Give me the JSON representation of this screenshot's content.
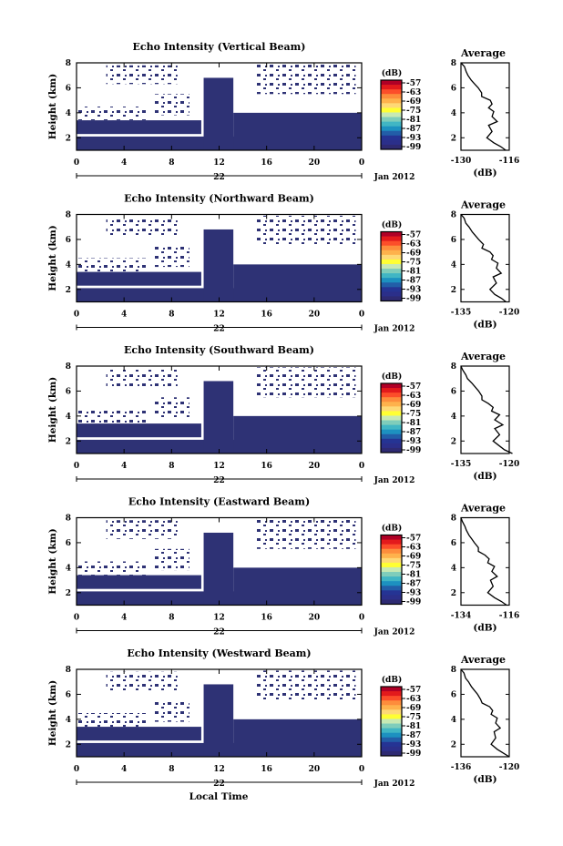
{
  "figure": {
    "xlabel": "Local Time",
    "date_label": "Jan 2012",
    "day_label": "22",
    "colorbar_unit": "(dB)",
    "colorbar_ticks": [
      "-57",
      "-63",
      "-69",
      "-75",
      "-81",
      "-87",
      "-93",
      "-99"
    ],
    "colorbar_colors": [
      "#b00026",
      "#e31a1c",
      "#fc4e2a",
      "#fd8d3c",
      "#feb24c",
      "#fed976",
      "#ffff33",
      "#c7e9b4",
      "#7fcdbb",
      "#41b6c4",
      "#1d91c0",
      "#225ea8",
      "#253494",
      "#2b2f8a",
      "#2e2a72"
    ],
    "sample_color": "#2e3275"
  },
  "chart_data": [
    {
      "type": "heatmap",
      "title": "Echo Intensity (Vertical Beam)",
      "ylabel": "Height (km)",
      "xlim": [
        0,
        24
      ],
      "ylim": [
        1,
        8
      ],
      "xticks": [
        "0",
        "4",
        "8",
        "12",
        "16",
        "20",
        "0"
      ],
      "yticks": [
        "2",
        "4",
        "6",
        "8"
      ],
      "profile": {
        "title": "Average",
        "xlabel": "(dB)",
        "xlim": [
          -130,
          -116
        ],
        "xticks": [
          "-130",
          "-116"
        ],
        "yticks": [
          "2",
          "4",
          "6",
          "8"
        ],
        "x": [
          -117.0,
          -118.5,
          -120.5,
          -122.5,
          -121.0,
          -122.0,
          -119.5,
          -121.0,
          -120.5,
          -122.0,
          -121.0,
          -121.5,
          -124.0,
          -124.0,
          -125.0,
          -126.0,
          -127.0,
          -128.0,
          -128.5,
          -129.0,
          -130.0
        ],
        "y": [
          1.0,
          1.3,
          1.6,
          2.0,
          2.5,
          3.0,
          3.3,
          3.7,
          4.1,
          4.4,
          4.7,
          5.0,
          5.3,
          5.6,
          6.0,
          6.3,
          6.6,
          7.0,
          7.3,
          7.7,
          8.0
        ]
      }
    },
    {
      "type": "heatmap",
      "title": "Echo Intensity (Northward Beam)",
      "ylabel": "Height (km)",
      "xlim": [
        0,
        24
      ],
      "ylim": [
        1,
        8
      ],
      "xticks": [
        "0",
        "4",
        "8",
        "12",
        "16",
        "20",
        "0"
      ],
      "yticks": [
        "2",
        "4",
        "6",
        "8"
      ],
      "profile": {
        "title": "Average",
        "xlabel": "(dB)",
        "xlim": [
          -135,
          -120
        ],
        "xticks": [
          "-135",
          "-120"
        ],
        "yticks": [
          "2",
          "4",
          "6",
          "8"
        ],
        "x": [
          -121.0,
          -122.5,
          -124.5,
          -126.0,
          -124.0,
          -125.0,
          -122.5,
          -124.0,
          -123.5,
          -125.5,
          -125.0,
          -126.0,
          -128.5,
          -128.0,
          -129.5,
          -130.5,
          -131.5,
          -132.5,
          -133.5,
          -134.0,
          -135.0
        ],
        "y": [
          1.0,
          1.3,
          1.6,
          2.0,
          2.5,
          3.0,
          3.3,
          3.7,
          4.1,
          4.4,
          4.7,
          5.0,
          5.3,
          5.6,
          6.0,
          6.3,
          6.6,
          7.0,
          7.3,
          7.7,
          8.0
        ]
      }
    },
    {
      "type": "heatmap",
      "title": "Echo Intensity (Southward Beam)",
      "ylabel": "Height (km)",
      "xlim": [
        0,
        24
      ],
      "ylim": [
        1,
        8
      ],
      "xticks": [
        "0",
        "4",
        "8",
        "12",
        "16",
        "20",
        "0"
      ],
      "yticks": [
        "2",
        "4",
        "6",
        "8"
      ],
      "profile": {
        "title": "Average",
        "xlabel": "(dB)",
        "xlim": [
          -135,
          -120
        ],
        "xticks": [
          "-135",
          "-120"
        ],
        "yticks": [
          "2",
          "4",
          "6",
          "8"
        ],
        "x": [
          -119.0,
          -121.5,
          -123.0,
          -125.0,
          -123.0,
          -124.5,
          -122.0,
          -124.5,
          -123.0,
          -125.5,
          -125.0,
          -126.5,
          -128.5,
          -128.5,
          -129.5,
          -130.5,
          -131.5,
          -133.0,
          -133.5,
          -134.5,
          -135.0
        ],
        "y": [
          1.0,
          1.3,
          1.6,
          2.0,
          2.5,
          3.0,
          3.3,
          3.7,
          4.1,
          4.4,
          4.7,
          5.0,
          5.3,
          5.6,
          6.0,
          6.3,
          6.6,
          7.0,
          7.3,
          7.7,
          8.0
        ]
      }
    },
    {
      "type": "heatmap",
      "title": "Echo Intensity (Eastward Beam)",
      "ylabel": "Height (km)",
      "xlim": [
        0,
        24
      ],
      "ylim": [
        1,
        8
      ],
      "xticks": [
        "0",
        "4",
        "8",
        "12",
        "16",
        "20",
        "0"
      ],
      "yticks": [
        "2",
        "4",
        "6",
        "8"
      ],
      "profile": {
        "title": "Average",
        "xlabel": "(dB)",
        "xlim": [
          -134,
          -116
        ],
        "xticks": [
          "-134",
          "-116"
        ],
        "yticks": [
          "2",
          "4",
          "6",
          "8"
        ],
        "x": [
          -117.0,
          -119.0,
          -121.5,
          -124.0,
          -122.0,
          -123.0,
          -120.5,
          -122.5,
          -121.5,
          -124.0,
          -123.5,
          -125.0,
          -127.5,
          -127.5,
          -129.0,
          -130.0,
          -131.0,
          -132.0,
          -132.5,
          -133.5,
          -134.0
        ],
        "y": [
          1.0,
          1.3,
          1.6,
          2.0,
          2.5,
          3.0,
          3.3,
          3.7,
          4.1,
          4.4,
          4.7,
          5.0,
          5.3,
          5.6,
          6.0,
          6.3,
          6.6,
          7.0,
          7.3,
          7.7,
          8.0
        ]
      }
    },
    {
      "type": "heatmap",
      "title": "Echo Intensity (Westward Beam)",
      "ylabel": "Height (km)",
      "xlim": [
        0,
        24
      ],
      "ylim": [
        1,
        8
      ],
      "xticks": [
        "0",
        "4",
        "8",
        "12",
        "16",
        "20",
        "0"
      ],
      "yticks": [
        "2",
        "4",
        "6",
        "8"
      ],
      "profile": {
        "title": "Average",
        "xlabel": "(dB)",
        "xlim": [
          -136,
          -120
        ],
        "xticks": [
          "-136",
          "-120"
        ],
        "yticks": [
          "2",
          "4",
          "6",
          "8"
        ],
        "x": [
          -120.0,
          -122.0,
          -124.0,
          -126.0,
          -124.5,
          -125.0,
          -123.0,
          -124.5,
          -124.0,
          -126.0,
          -125.5,
          -126.5,
          -129.0,
          -129.5,
          -130.5,
          -131.5,
          -132.5,
          -133.5,
          -134.5,
          -135.0,
          -136.0
        ],
        "y": [
          1.0,
          1.3,
          1.6,
          2.0,
          2.5,
          3.0,
          3.3,
          3.7,
          4.1,
          4.4,
          4.7,
          5.0,
          5.3,
          5.6,
          6.0,
          6.3,
          6.6,
          7.0,
          7.3,
          7.7,
          8.0
        ]
      }
    }
  ]
}
